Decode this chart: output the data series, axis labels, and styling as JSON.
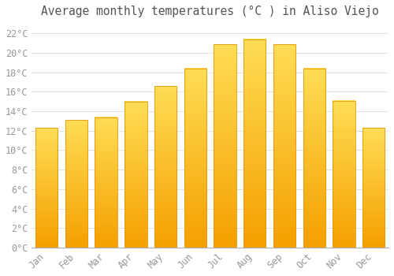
{
  "title": "Average monthly temperatures (°C ) in Aliso Viejo",
  "months": [
    "Jan",
    "Feb",
    "Mar",
    "Apr",
    "May",
    "Jun",
    "Jul",
    "Aug",
    "Sep",
    "Oct",
    "Nov",
    "Dec"
  ],
  "values": [
    12.3,
    13.1,
    13.4,
    15.0,
    16.6,
    18.4,
    20.9,
    21.4,
    20.9,
    18.4,
    15.1,
    12.3
  ],
  "bar_color_top": "#FFDD55",
  "bar_color_bottom": "#F5A000",
  "bar_edge_color": "#E8960A",
  "background_color": "#FFFFFF",
  "plot_bg_color": "#FFFFFF",
  "grid_color": "#DDDDDD",
  "tick_label_color": "#999999",
  "title_color": "#555555",
  "ylim": [
    0,
    23
  ],
  "yticks": [
    0,
    2,
    4,
    6,
    8,
    10,
    12,
    14,
    16,
    18,
    20,
    22
  ],
  "title_fontsize": 10.5,
  "tick_fontsize": 8.5,
  "bar_width": 0.75
}
